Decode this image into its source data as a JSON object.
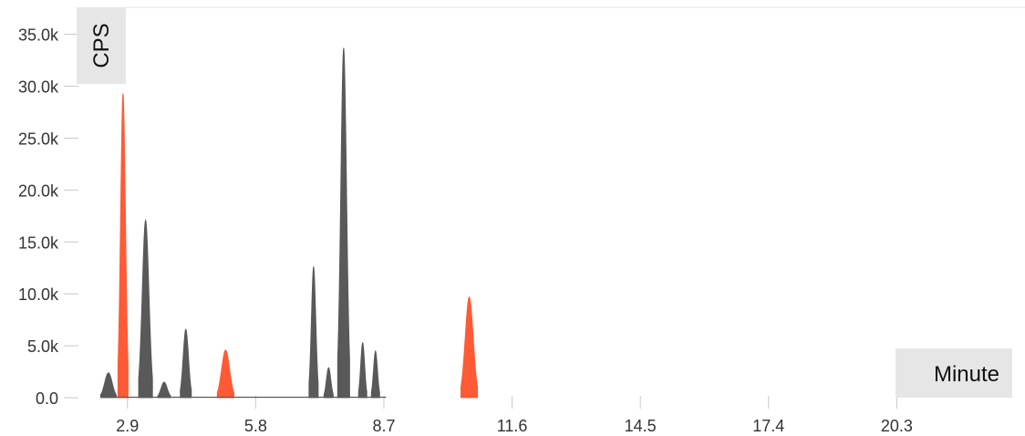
{
  "chart_data": {
    "type": "area",
    "ylabel": "CPS",
    "xlabel": "Minute",
    "xlim": [
      1.75,
      23.2
    ],
    "ylim": [
      0,
      37600
    ],
    "yticks": [
      {
        "value": 0,
        "label": "0.0"
      },
      {
        "value": 5000,
        "label": "5.0k"
      },
      {
        "value": 10000,
        "label": "10.0k"
      },
      {
        "value": 15000,
        "label": "15.0k"
      },
      {
        "value": 20000,
        "label": "20.0k"
      },
      {
        "value": 25000,
        "label": "25.0k"
      },
      {
        "value": 30000,
        "label": "30.0k"
      },
      {
        "value": 35000,
        "label": "35.0k"
      }
    ],
    "xticks": [
      {
        "value": 2.9,
        "label": "2.9"
      },
      {
        "value": 5.8,
        "label": "5.8"
      },
      {
        "value": 8.7,
        "label": "8.7"
      },
      {
        "value": 11.6,
        "label": "11.6"
      },
      {
        "value": 14.5,
        "label": "14.5"
      },
      {
        "value": 17.4,
        "label": "17.4"
      },
      {
        "value": 20.3,
        "label": "20.3"
      }
    ],
    "grid": false,
    "colors": {
      "background_series": "#595959",
      "highlight_series": "#ff5a36"
    },
    "series": [
      {
        "peaks": [
          {
            "rt": 2.47,
            "height": 2400,
            "width": 0.085
          },
          {
            "rt": 3.31,
            "height": 17100,
            "width": 0.075
          },
          {
            "rt": 3.73,
            "height": 1500,
            "width": 0.07
          },
          {
            "rt": 4.22,
            "height": 6600,
            "width": 0.06
          },
          {
            "rt": 7.11,
            "height": 12600,
            "width": 0.05
          },
          {
            "rt": 7.45,
            "height": 2900,
            "width": 0.05
          },
          {
            "rt": 7.79,
            "height": 33700,
            "width": 0.065
          },
          {
            "rt": 8.22,
            "height": 5300,
            "width": 0.045
          },
          {
            "rt": 8.51,
            "height": 4500,
            "width": 0.045
          }
        ]
      },
      {
        "peaks": [
          {
            "rt": 2.8,
            "height": 29300,
            "width": 0.055
          },
          {
            "rt": 5.12,
            "height": 4600,
            "width": 0.09
          },
          {
            "rt": 10.63,
            "height": 9700,
            "width": 0.09
          }
        ]
      }
    ]
  }
}
